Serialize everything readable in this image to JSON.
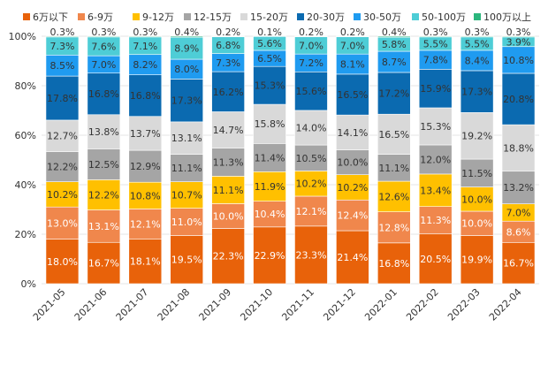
{
  "chart_data": {
    "type": "bar",
    "stacked": true,
    "percent": true,
    "legend_position": "top",
    "categories": [
      "2021-05",
      "2021-06",
      "2021-07",
      "2021-08",
      "2021-09",
      "2021-10",
      "2021-11",
      "2021-12",
      "2022-01",
      "2022-02",
      "2022-03",
      "2022-04"
    ],
    "ylim": [
      0,
      100
    ],
    "yticks": [
      0,
      20,
      40,
      60,
      80,
      100
    ],
    "ytick_labels": [
      "0%",
      "20%",
      "40%",
      "60%",
      "80%",
      "100%"
    ],
    "series": [
      {
        "name": "6万以下",
        "color": "#E8620A",
        "text_color": "#ffffff",
        "values": [
          18.0,
          16.7,
          18.1,
          19.5,
          22.3,
          22.9,
          23.3,
          21.4,
          16.8,
          20.5,
          19.9,
          16.7
        ],
        "labels": [
          "18.0%",
          "16.7%",
          "18.1%",
          "19.5%",
          "22.3%",
          "22.9%",
          "23.3%",
          "21.4%",
          "16.8%",
          "20.5%",
          "19.9%",
          "16.7%"
        ]
      },
      {
        "name": "6-9万",
        "color": "#F0874C",
        "text_color": "#ffffff",
        "values": [
          13.0,
          13.1,
          12.1,
          11.0,
          10.0,
          10.4,
          12.1,
          12.4,
          12.8,
          11.3,
          10.0,
          8.6
        ],
        "labels": [
          "13.0%",
          "13.1%",
          "12.1%",
          "11.0%",
          "10.0%",
          "10.4%",
          "12.1%",
          "12.4%",
          "12.8%",
          "11.3%",
          "10.0%",
          "8.6%"
        ]
      },
      {
        "name": "9-12万",
        "color": "#FFC000",
        "text_color": "#333333",
        "values": [
          10.2,
          12.2,
          10.8,
          10.7,
          11.1,
          11.9,
          10.2,
          10.2,
          12.6,
          13.4,
          10.0,
          7.0
        ],
        "labels": [
          "10.2%",
          "12.2%",
          "10.8%",
          "10.7%",
          "11.1%",
          "11.9%",
          "10.2%",
          "10.2%",
          "12.6%",
          "13.4%",
          "10.0%",
          "7.0%"
        ]
      },
      {
        "name": "12-15万",
        "color": "#A5A5A5",
        "text_color": "#333333",
        "values": [
          12.2,
          12.5,
          12.9,
          11.1,
          11.3,
          11.4,
          10.5,
          10.0,
          11.1,
          12.0,
          11.5,
          13.2
        ],
        "labels": [
          "12.2%",
          "12.5%",
          "12.9%",
          "11.1%",
          "11.3%",
          "11.4%",
          "10.5%",
          "10.0%",
          "11.1%",
          "12.0%",
          "11.5%",
          "13.2%"
        ]
      },
      {
        "name": "15-20万",
        "color": "#D9D9D9",
        "text_color": "#333333",
        "values": [
          12.7,
          13.8,
          13.7,
          13.1,
          14.7,
          15.8,
          14.0,
          14.1,
          16.5,
          15.3,
          19.2,
          18.8
        ],
        "labels": [
          "12.7%",
          "13.8%",
          "13.7%",
          "13.1%",
          "14.7%",
          "15.8%",
          "14.0%",
          "14.1%",
          "16.5%",
          "15.3%",
          "19.2%",
          "18.8%"
        ]
      },
      {
        "name": "20-30万",
        "color": "#0B6AB0",
        "text_color": "#333333",
        "values": [
          17.8,
          16.8,
          16.8,
          17.3,
          16.2,
          15.3,
          15.6,
          16.5,
          17.2,
          15.9,
          17.3,
          20.8
        ],
        "labels": [
          "17.8%",
          "16.8%",
          "16.8%",
          "17.3%",
          "16.2%",
          "15.3%",
          "15.6%",
          "16.5%",
          "17.2%",
          "15.9%",
          "17.3%",
          "20.8%"
        ]
      },
      {
        "name": "30-50万",
        "color": "#1F9BF0",
        "text_color": "#333333",
        "values": [
          8.5,
          7.0,
          8.2,
          8.0,
          7.3,
          6.5,
          7.2,
          8.1,
          8.7,
          7.8,
          8.4,
          10.8
        ],
        "labels": [
          "8.5%",
          "7.0%",
          "8.2%",
          "8.0%",
          "7.3%",
          "6.5%",
          "7.2%",
          "8.1%",
          "8.7%",
          "7.8%",
          "8.4%",
          "10.8%"
        ]
      },
      {
        "name": "50-100万",
        "color": "#4ECDD6",
        "text_color": "#333333",
        "values": [
          7.3,
          7.6,
          7.1,
          8.9,
          6.8,
          5.6,
          7.0,
          7.0,
          5.8,
          5.5,
          5.5,
          3.9
        ],
        "labels": [
          "7.3%",
          "7.6%",
          "7.1%",
          "8.9%",
          "6.8%",
          "5.6%",
          "7.0%",
          "7.0%",
          "5.8%",
          "5.5%",
          "5.5%",
          "3.9%"
        ]
      },
      {
        "name": "100万以上",
        "color": "#2CB67D",
        "text_color": "#333333",
        "values": [
          0.3,
          0.3,
          0.3,
          0.4,
          0.2,
          0.1,
          0.2,
          0.2,
          0.4,
          0.3,
          0.3,
          0.3
        ],
        "labels": [
          "0.3%",
          "0.3%",
          "0.3%",
          "0.4%",
          "0.2%",
          "0.1%",
          "0.2%",
          "0.2%",
          "0.4%",
          "0.3%",
          "0.3%",
          "0.3%"
        ]
      }
    ]
  }
}
